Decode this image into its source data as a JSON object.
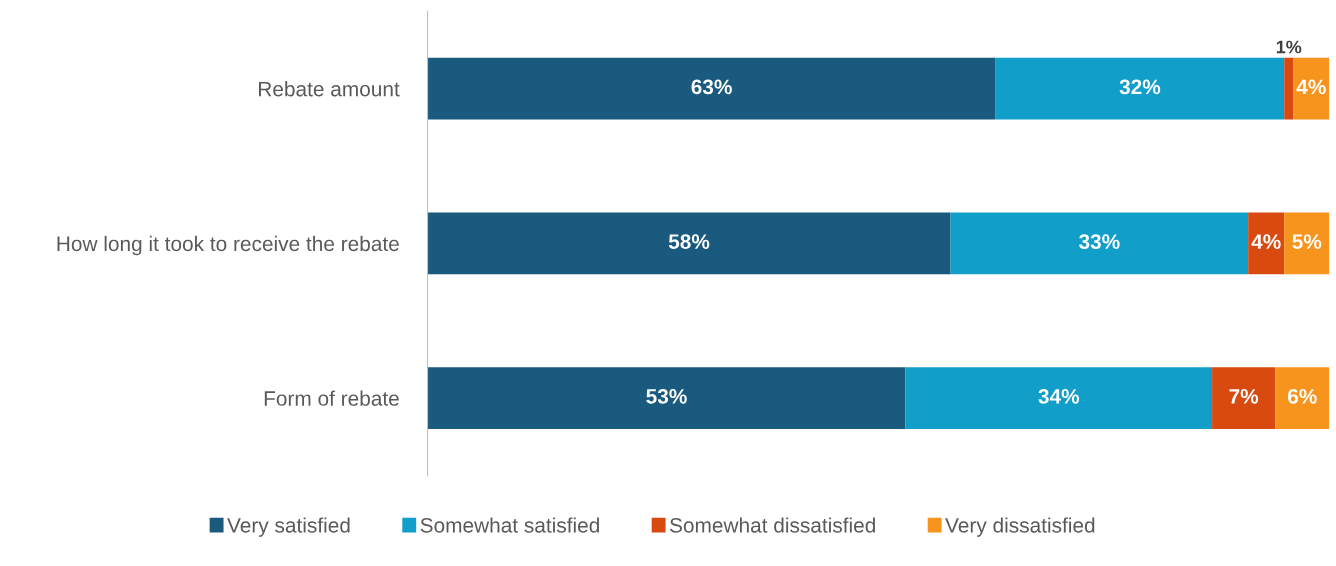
{
  "chart_data": {
    "type": "bar",
    "orientation": "horizontal",
    "stacked": true,
    "legend": "bottom",
    "grid": false,
    "categories": [
      "Rebate amount",
      "How long it took to receive the rebate",
      "Form of rebate"
    ],
    "series": [
      {
        "name": "Very satisfied",
        "color": "#1a5a7e",
        "values": [
          63,
          58,
          53
        ],
        "value_labels": [
          "63%",
          "58%",
          "53%"
        ]
      },
      {
        "name": "Somewhat satisfied",
        "color": "#119fca",
        "values": [
          32,
          33,
          34
        ],
        "value_labels": [
          "32%",
          "33%",
          "34%"
        ]
      },
      {
        "name": "Somewhat dissatisfied",
        "color": "#d84a10",
        "values": [
          1,
          4,
          7
        ],
        "value_labels": [
          "1%",
          "4%",
          "7%"
        ]
      },
      {
        "name": "Very dissatisfied",
        "color": "#f7941d",
        "values": [
          4,
          5,
          6
        ],
        "value_labels": [
          "4%",
          "5%",
          "6%"
        ]
      }
    ]
  }
}
